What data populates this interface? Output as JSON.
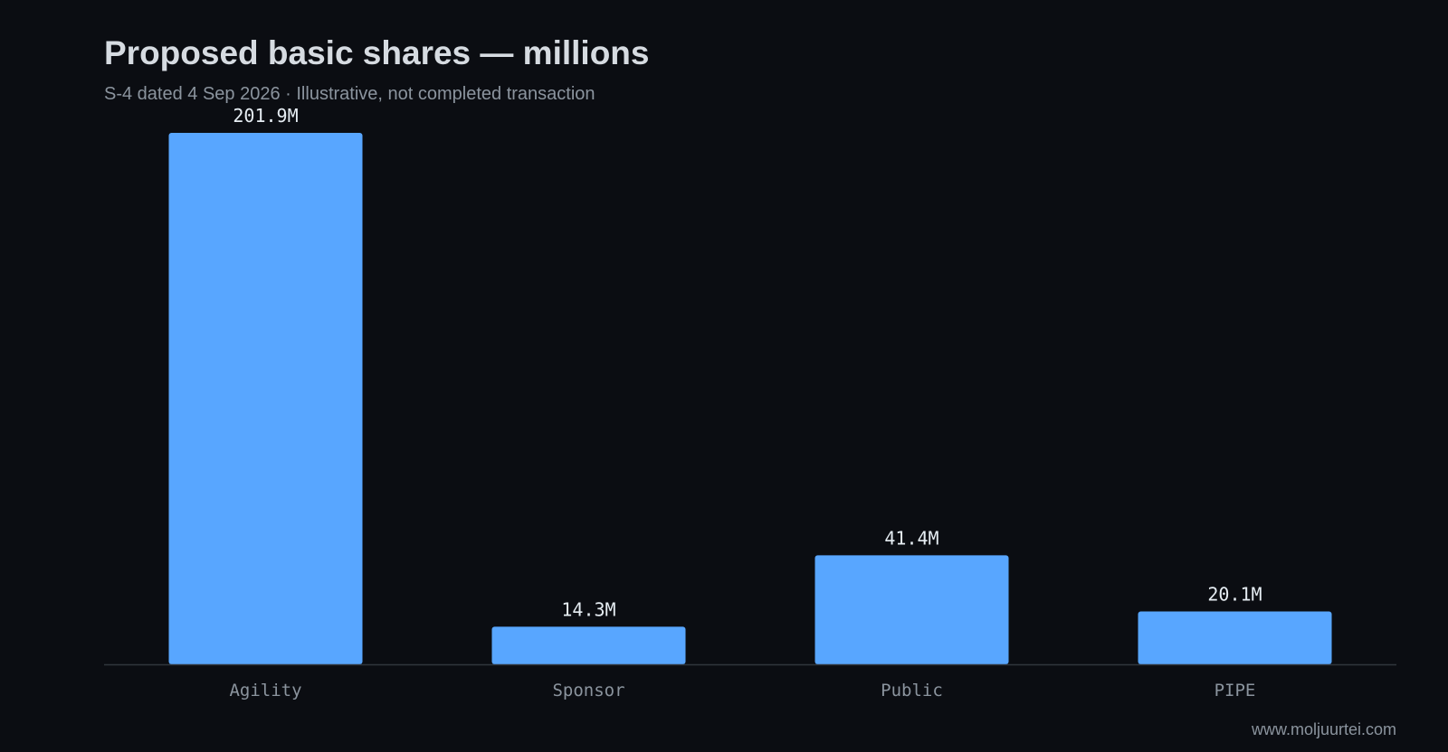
{
  "chart_data": {
    "type": "bar",
    "title": "Proposed basic shares — millions",
    "subtitle": "S-4 dated 4 Sep 2026 · Illustrative, not completed transaction",
    "categories": [
      "Agility",
      "Sponsor",
      "Public",
      "PIPE"
    ],
    "values": [
      201.9,
      14.3,
      41.4,
      20.1
    ],
    "value_labels": [
      "201.9M",
      "14.3M",
      "41.4M",
      "20.1M"
    ],
    "unit": "M",
    "ylim": [
      0,
      201.9
    ],
    "grid": false,
    "legend": "none",
    "colors": {
      "bar": "#58a6ff",
      "background": "#0b0d12",
      "axis": "#30363d",
      "value_label": "#e6edf3",
      "tick_label": "#8b949e"
    }
  },
  "footer": {
    "watermark": "www.moljuurtei.com"
  }
}
